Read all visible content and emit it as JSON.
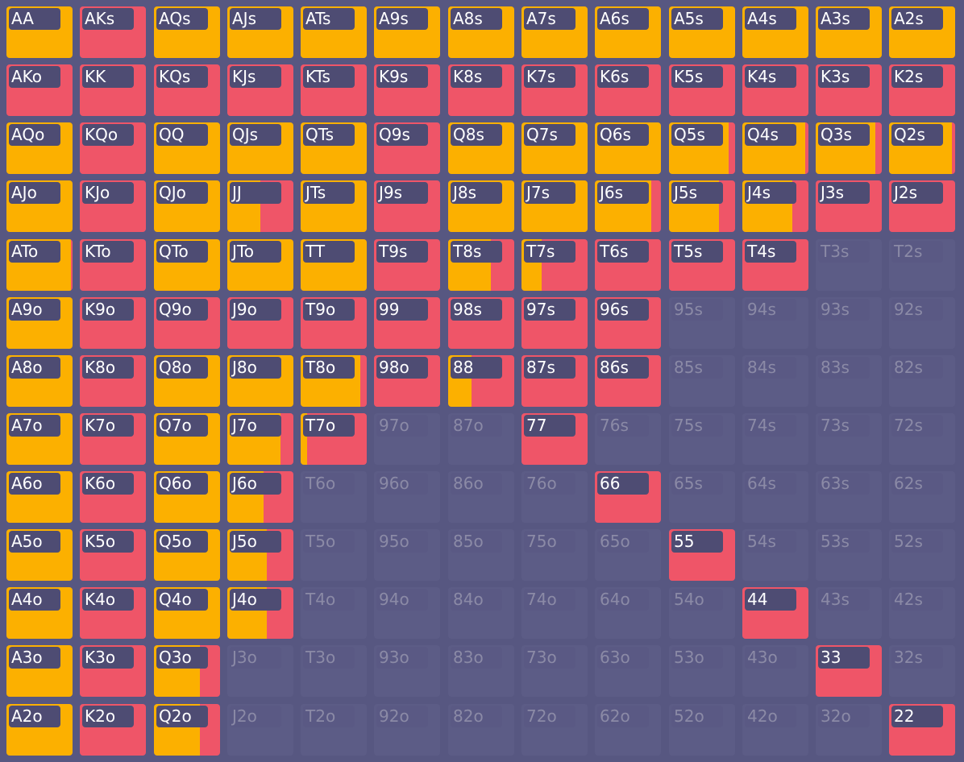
{
  "colors": {
    "raise": "#fcb000",
    "call": "#ef5568",
    "call_dark": "#e8495d",
    "fold": "#5c5c86",
    "background": "#575781",
    "label_bg": "#4e4c73"
  },
  "hands": [
    [
      "AA",
      "AKs",
      "AQs",
      "AJs",
      "ATs",
      "A9s",
      "A8s",
      "A7s",
      "A6s",
      "A5s",
      "A4s",
      "A3s",
      "A2s"
    ],
    [
      "AKo",
      "KK",
      "KQs",
      "KJs",
      "KTs",
      "K9s",
      "K8s",
      "K7s",
      "K6s",
      "K5s",
      "K4s",
      "K3s",
      "K2s"
    ],
    [
      "AQo",
      "KQo",
      "QQ",
      "QJs",
      "QTs",
      "Q9s",
      "Q8s",
      "Q7s",
      "Q6s",
      "Q5s",
      "Q4s",
      "Q3s",
      "Q2s"
    ],
    [
      "AJo",
      "KJo",
      "QJo",
      "JJ",
      "JTs",
      "J9s",
      "J8s",
      "J7s",
      "J6s",
      "J5s",
      "J4s",
      "J3s",
      "J2s"
    ],
    [
      "ATo",
      "KTo",
      "QTo",
      "JTo",
      "TT",
      "T9s",
      "T8s",
      "T7s",
      "T6s",
      "T5s",
      "T4s",
      "T3s",
      "T2s"
    ],
    [
      "A9o",
      "K9o",
      "Q9o",
      "J9o",
      "T9o",
      "99",
      "98s",
      "97s",
      "96s",
      "95s",
      "94s",
      "93s",
      "92s"
    ],
    [
      "A8o",
      "K8o",
      "Q8o",
      "J8o",
      "T8o",
      "98o",
      "88",
      "87s",
      "86s",
      "85s",
      "84s",
      "83s",
      "82s"
    ],
    [
      "A7o",
      "K7o",
      "Q7o",
      "J7o",
      "T7o",
      "97o",
      "87o",
      "77",
      "76s",
      "75s",
      "74s",
      "73s",
      "72s"
    ],
    [
      "A6o",
      "K6o",
      "Q6o",
      "J6o",
      "T6o",
      "96o",
      "86o",
      "76o",
      "66",
      "65s",
      "64s",
      "63s",
      "62s"
    ],
    [
      "A5o",
      "K5o",
      "Q5o",
      "J5o",
      "T5o",
      "95o",
      "85o",
      "75o",
      "65o",
      "55",
      "54s",
      "53s",
      "52s"
    ],
    [
      "A4o",
      "K4o",
      "Q4o",
      "J4o",
      "T4o",
      "94o",
      "84o",
      "74o",
      "64o",
      "54o",
      "44",
      "43s",
      "42s"
    ],
    [
      "A3o",
      "K3o",
      "Q3o",
      "J3o",
      "T3o",
      "93o",
      "83o",
      "73o",
      "63o",
      "53o",
      "43o",
      "33",
      "32s"
    ],
    [
      "A2o",
      "K2o",
      "Q2o",
      "J2o",
      "T2o",
      "92o",
      "82o",
      "72o",
      "62o",
      "52o",
      "42o",
      "32o",
      "22"
    ]
  ],
  "strategy": [
    [
      [
        1,
        0
      ],
      [
        0,
        1
      ],
      [
        1,
        0
      ],
      [
        1,
        0
      ],
      [
        1,
        0
      ],
      [
        1,
        0
      ],
      [
        1,
        0
      ],
      [
        1,
        0
      ],
      [
        1,
        0
      ],
      [
        1,
        0
      ],
      [
        1,
        0
      ],
      [
        1,
        0
      ],
      [
        1,
        0
      ]
    ],
    [
      [
        0,
        1
      ],
      [
        0,
        1
      ],
      [
        0,
        1
      ],
      [
        0,
        1
      ],
      [
        0,
        1
      ],
      [
        0,
        1
      ],
      [
        0,
        1
      ],
      [
        0,
        1
      ],
      [
        0,
        1
      ],
      [
        0,
        1
      ],
      [
        0,
        1
      ],
      [
        0,
        1
      ],
      [
        0,
        1
      ]
    ],
    [
      [
        1,
        0
      ],
      [
        0,
        1
      ],
      [
        1,
        0
      ],
      [
        1,
        0
      ],
      [
        1,
        0
      ],
      [
        0,
        1
      ],
      [
        1,
        0
      ],
      [
        1,
        0
      ],
      [
        1,
        0
      ],
      [
        0.9,
        0.1
      ],
      [
        0.95,
        0.05
      ],
      [
        0.9,
        0.1
      ],
      [
        0.95,
        0.05
      ]
    ],
    [
      [
        1,
        0
      ],
      [
        0,
        1
      ],
      [
        1,
        0
      ],
      [
        0.5,
        0.5
      ],
      [
        1,
        0
      ],
      [
        0,
        1
      ],
      [
        1,
        0
      ],
      [
        1,
        0
      ],
      [
        0.85,
        0.15
      ],
      [
        0.75,
        0.25
      ],
      [
        0.75,
        0.25
      ],
      [
        0,
        1
      ],
      [
        0,
        1
      ]
    ],
    [
      [
        0.97,
        0.03
      ],
      [
        0,
        1
      ],
      [
        1,
        0
      ],
      [
        1,
        0
      ],
      [
        1,
        0
      ],
      [
        0,
        1
      ],
      [
        0.65,
        0.35
      ],
      [
        0.3,
        0.7
      ],
      [
        0,
        1
      ],
      [
        0,
        1
      ],
      [
        0,
        1
      ],
      [
        0,
        0
      ],
      [
        0,
        0
      ]
    ],
    [
      [
        1,
        0
      ],
      [
        0,
        1
      ],
      [
        0,
        1
      ],
      [
        0,
        1
      ],
      [
        0,
        1
      ],
      [
        0,
        1
      ],
      [
        0,
        1
      ],
      [
        0,
        1
      ],
      [
        0,
        1
      ],
      [
        0,
        0
      ],
      [
        0,
        0
      ],
      [
        0,
        0
      ],
      [
        0,
        0
      ]
    ],
    [
      [
        1,
        0
      ],
      [
        0,
        1
      ],
      [
        1,
        0
      ],
      [
        1,
        0
      ],
      [
        0.9,
        0.1
      ],
      [
        0,
        1
      ],
      [
        0.35,
        0.65
      ],
      [
        0,
        1
      ],
      [
        0,
        1
      ],
      [
        0,
        0
      ],
      [
        0,
        0
      ],
      [
        0,
        0
      ],
      [
        0,
        0
      ]
    ],
    [
      [
        1,
        0
      ],
      [
        0,
        1
      ],
      [
        1,
        0
      ],
      [
        0.8,
        0.2
      ],
      [
        0.1,
        0.9
      ],
      [
        0,
        0
      ],
      [
        0,
        0
      ],
      [
        0,
        1
      ],
      [
        0,
        0
      ],
      [
        0,
        0
      ],
      [
        0,
        0
      ],
      [
        0,
        0
      ],
      [
        0,
        0
      ]
    ],
    [
      [
        1,
        0
      ],
      [
        0,
        1
      ],
      [
        1,
        0
      ],
      [
        0.55,
        0.45
      ],
      [
        0,
        0
      ],
      [
        0,
        0
      ],
      [
        0,
        0
      ],
      [
        0,
        0
      ],
      [
        0,
        1
      ],
      [
        0,
        0
      ],
      [
        0,
        0
      ],
      [
        0,
        0
      ],
      [
        0,
        0
      ]
    ],
    [
      [
        1,
        0
      ],
      [
        0,
        1
      ],
      [
        1,
        0
      ],
      [
        0.6,
        0.4
      ],
      [
        0,
        0
      ],
      [
        0,
        0
      ],
      [
        0,
        0
      ],
      [
        0,
        0
      ],
      [
        0,
        0
      ],
      [
        0,
        1
      ],
      [
        0,
        0
      ],
      [
        0,
        0
      ],
      [
        0,
        0
      ]
    ],
    [
      [
        1,
        0
      ],
      [
        0,
        1
      ],
      [
        1,
        0
      ],
      [
        0.6,
        0.4
      ],
      [
        0,
        0
      ],
      [
        0,
        0
      ],
      [
        0,
        0
      ],
      [
        0,
        0
      ],
      [
        0,
        0
      ],
      [
        0,
        0
      ],
      [
        0,
        1
      ],
      [
        0,
        0
      ],
      [
        0,
        0
      ]
    ],
    [
      [
        1,
        0
      ],
      [
        0,
        1
      ],
      [
        0.7,
        0.3
      ],
      [
        0,
        0
      ],
      [
        0,
        0
      ],
      [
        0,
        0
      ],
      [
        0,
        0
      ],
      [
        0,
        0
      ],
      [
        0,
        0
      ],
      [
        0,
        0
      ],
      [
        0,
        0
      ],
      [
        0,
        1
      ],
      [
        0,
        0
      ]
    ],
    [
      [
        1,
        0
      ],
      [
        0,
        1
      ],
      [
        0.7,
        0.3
      ],
      [
        0,
        0
      ],
      [
        0,
        0
      ],
      [
        0,
        0
      ],
      [
        0,
        0
      ],
      [
        0,
        0
      ],
      [
        0,
        0
      ],
      [
        0,
        0
      ],
      [
        0,
        0
      ],
      [
        0,
        0
      ],
      [
        0,
        1
      ]
    ]
  ]
}
